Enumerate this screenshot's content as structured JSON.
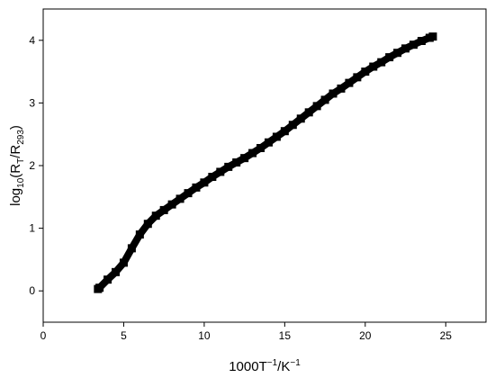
{
  "chart_data": {
    "type": "scatter",
    "xlabel": [
      "1000T",
      "−1",
      "/K",
      "−1"
    ],
    "ylabel": [
      "log",
      "10",
      "(R",
      "T",
      "/R",
      "293",
      ")"
    ],
    "xlim": [
      0,
      27.5
    ],
    "ylim": [
      -0.5,
      4.5
    ],
    "xticks": [
      0,
      5,
      10,
      15,
      20,
      25
    ],
    "yticks": [
      0,
      1,
      2,
      3,
      4
    ],
    "color": "#000000",
    "series": [
      {
        "x": [
          3.4,
          3.5,
          4,
          4.5,
          5,
          5.5,
          6,
          6.5,
          7,
          7.5,
          8,
          8.5,
          9,
          9.5,
          10,
          10.5,
          11,
          11.5,
          12,
          12.5,
          13,
          13.5,
          14,
          14.5,
          15,
          15.5,
          16,
          16.5,
          17,
          17.5,
          18,
          18.5,
          19,
          19.5,
          20,
          20.5,
          21,
          21.5,
          22,
          22.5,
          23,
          23.5,
          24,
          24.2
        ],
        "values": [
          0.03,
          0.05,
          0.18,
          0.3,
          0.45,
          0.68,
          0.9,
          1.07,
          1.2,
          1.29,
          1.38,
          1.47,
          1.56,
          1.65,
          1.73,
          1.82,
          1.9,
          1.98,
          2.05,
          2.12,
          2.2,
          2.28,
          2.37,
          2.46,
          2.55,
          2.65,
          2.75,
          2.85,
          2.95,
          3.05,
          3.15,
          3.23,
          3.32,
          3.41,
          3.5,
          3.58,
          3.65,
          3.73,
          3.8,
          3.87,
          3.93,
          3.99,
          4.04,
          4.06
        ]
      }
    ]
  }
}
